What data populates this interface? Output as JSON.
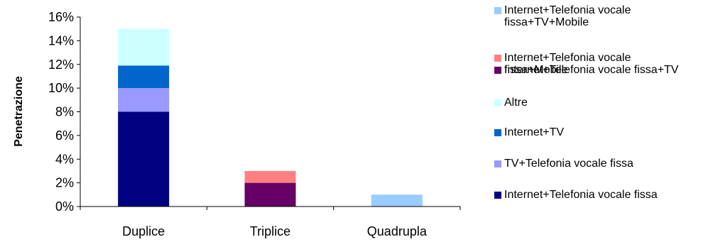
{
  "chart_data": {
    "type": "bar",
    "stacked": true,
    "categories": [
      "Duplice",
      "Triplice",
      "Quadrupla"
    ],
    "ylabel": "Penetrazione",
    "ylim": [
      0,
      16
    ],
    "yticks": [
      "0%",
      "2%",
      "4%",
      "6%",
      "8%",
      "10%",
      "12%",
      "14%",
      "16%"
    ],
    "grid": false,
    "legend_position": "right",
    "series": [
      {
        "name": "Internet+Telefonia vocale fissa",
        "values": [
          8,
          0,
          0
        ],
        "color": "#000080"
      },
      {
        "name": "TV+Telefonia vocale fissa",
        "values": [
          2,
          0,
          0
        ],
        "color": "#9999ff"
      },
      {
        "name": "Internet+TV",
        "values": [
          1.9,
          0,
          0
        ],
        "color": "#0066cc"
      },
      {
        "name": "Altre",
        "values": [
          3.1,
          0,
          0
        ],
        "color": "#ccffff"
      },
      {
        "name": "Internet+Telefonia vocale fissa+TV",
        "values": [
          0,
          2,
          0
        ],
        "color": "#660066"
      },
      {
        "name": "Internet+Telefonia vocale fissa+Mobile",
        "values": [
          0,
          1,
          0
        ],
        "color": "#ff8080"
      },
      {
        "name": "Internet+Telefonia vocale fissa+TV+Mobile",
        "values": [
          0,
          0,
          1
        ],
        "color": "#99ccff"
      }
    ]
  }
}
